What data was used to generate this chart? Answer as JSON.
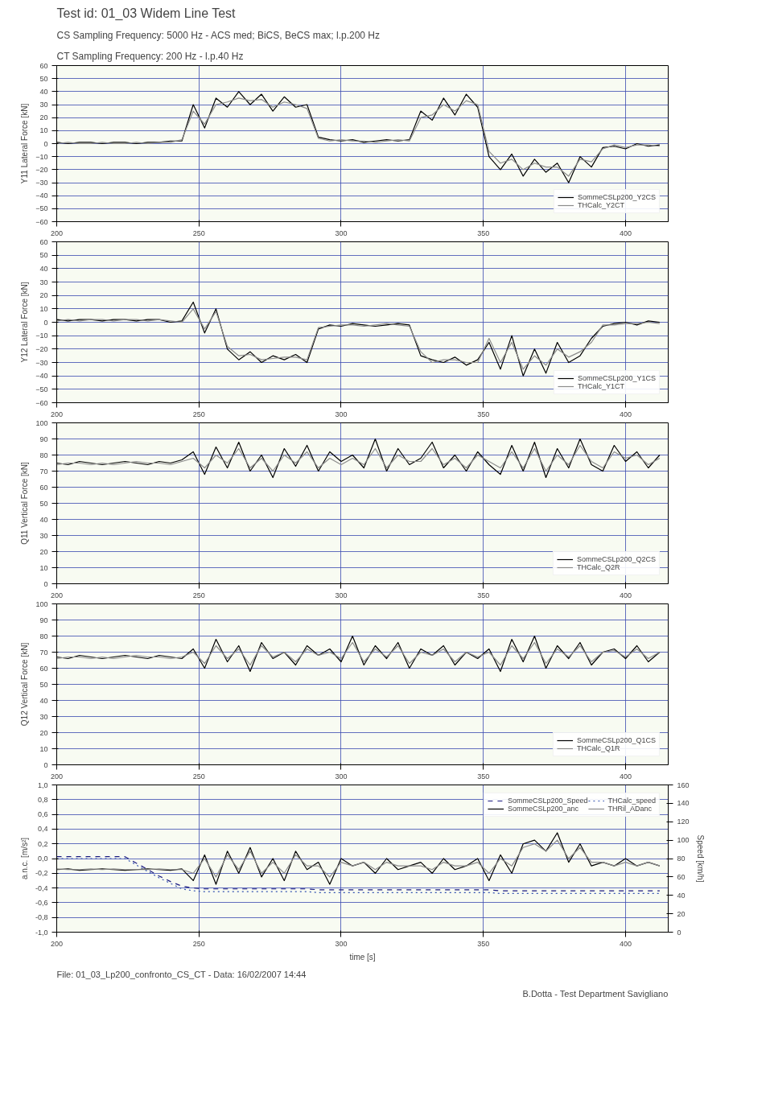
{
  "chart_data": [
    {
      "type": "line",
      "title": "Test id: 01_03 Widem Line Test",
      "subtitle": "CS Sampling Frequency: 5000 Hz - ACS med; BiCS, BeCS max; l.p.200 Hz",
      "annotations": [
        "CT Sampling Frequency: 200 Hz - l.p.40 Hz"
      ],
      "ylabel": "Y11 Lateral Force [kN]",
      "xlim": [
        200,
        415
      ],
      "xticks": [
        200,
        250,
        300,
        350,
        400
      ],
      "ylim": [
        -60,
        60
      ],
      "yticks": [
        -60,
        -50,
        -40,
        -30,
        -20,
        -10,
        0,
        10,
        20,
        30,
        40,
        50,
        60
      ],
      "grid": true,
      "legend": "bottom right",
      "x": [
        200,
        204,
        208,
        212,
        216,
        220,
        224,
        228,
        232,
        236,
        240,
        244,
        248,
        252,
        256,
        260,
        264,
        268,
        272,
        276,
        280,
        284,
        288,
        292,
        296,
        300,
        304,
        308,
        312,
        316,
        320,
        324,
        328,
        332,
        336,
        340,
        344,
        348,
        352,
        356,
        360,
        364,
        368,
        372,
        376,
        380,
        384,
        388,
        392,
        396,
        400,
        404,
        408,
        412
      ],
      "series": [
        {
          "name": "SommeCSLp200_Y2CS",
          "color": "#000000",
          "values": [
            1,
            0,
            1,
            1,
            0,
            1,
            1,
            0,
            1,
            1,
            2,
            2,
            30,
            12,
            35,
            28,
            40,
            30,
            38,
            25,
            36,
            28,
            30,
            5,
            3,
            2,
            3,
            1,
            2,
            3,
            2,
            3,
            25,
            18,
            35,
            22,
            38,
            28,
            -10,
            -20,
            -8,
            -25,
            -12,
            -22,
            -15,
            -30,
            -10,
            -18,
            -3,
            -2,
            -4,
            0,
            -2,
            -1
          ]
        },
        {
          "name": "THCalc_Y2CT",
          "color": "#8c8c8c",
          "values": [
            0,
            1,
            0,
            0,
            1,
            0,
            0,
            1,
            0,
            1,
            1,
            3,
            25,
            15,
            30,
            32,
            35,
            33,
            34,
            28,
            32,
            30,
            27,
            4,
            2,
            3,
            2,
            2,
            1,
            2,
            3,
            2,
            20,
            22,
            30,
            25,
            33,
            30,
            -6,
            -15,
            -12,
            -20,
            -15,
            -18,
            -18,
            -25,
            -12,
            -14,
            -4,
            -1,
            -3,
            -1,
            -1,
            -2
          ]
        }
      ]
    },
    {
      "type": "line",
      "ylabel": "Y12 Lateral Force [kN]",
      "xlim": [
        200,
        415
      ],
      "xticks": [
        200,
        250,
        300,
        350,
        400
      ],
      "ylim": [
        -60,
        60
      ],
      "yticks": [
        -60,
        -50,
        -40,
        -30,
        -20,
        -10,
        0,
        10,
        20,
        30,
        40,
        50,
        60
      ],
      "grid": true,
      "legend": "bottom right",
      "x": [
        200,
        204,
        208,
        212,
        216,
        220,
        224,
        228,
        232,
        236,
        240,
        244,
        248,
        252,
        256,
        260,
        264,
        268,
        272,
        276,
        280,
        284,
        288,
        292,
        296,
        300,
        304,
        308,
        312,
        316,
        320,
        324,
        328,
        332,
        336,
        340,
        344,
        348,
        352,
        356,
        360,
        364,
        368,
        372,
        376,
        380,
        384,
        388,
        392,
        396,
        400,
        404,
        408,
        412
      ],
      "series": [
        {
          "name": "SommeCSLp200_Y1CS",
          "color": "#000000",
          "values": [
            2,
            1,
            2,
            2,
            1,
            2,
            2,
            1,
            2,
            2,
            0,
            1,
            15,
            -8,
            10,
            -20,
            -28,
            -22,
            -30,
            -25,
            -28,
            -24,
            -30,
            -5,
            -2,
            -3,
            -1,
            -2,
            -3,
            -2,
            -1,
            -2,
            -25,
            -28,
            -30,
            -26,
            -32,
            -28,
            -15,
            -35,
            -10,
            -40,
            -20,
            -38,
            -15,
            -30,
            -25,
            -12,
            -3,
            -1,
            0,
            -2,
            1,
            0
          ]
        },
        {
          "name": "THCalc_Y1CT",
          "color": "#8c8c8c",
          "values": [
            1,
            2,
            1,
            2,
            2,
            1,
            2,
            2,
            1,
            2,
            1,
            0,
            10,
            -5,
            8,
            -18,
            -25,
            -24,
            -28,
            -27,
            -26,
            -26,
            -28,
            -4,
            -3,
            -2,
            -2,
            -3,
            -2,
            -1,
            -2,
            -3,
            -22,
            -30,
            -28,
            -28,
            -30,
            -30,
            -12,
            -30,
            -15,
            -35,
            -25,
            -32,
            -20,
            -26,
            -22,
            -15,
            -2,
            -2,
            -1,
            -1,
            0,
            -1
          ]
        }
      ]
    },
    {
      "type": "line",
      "ylabel": "Q11 Vertical Force [kN]",
      "xlim": [
        200,
        415
      ],
      "xticks": [
        200,
        250,
        300,
        350,
        400
      ],
      "ylim": [
        0,
        100
      ],
      "yticks": [
        0,
        10,
        20,
        30,
        40,
        50,
        60,
        70,
        80,
        90,
        100
      ],
      "grid": true,
      "legend": "bottom right",
      "x": [
        200,
        204,
        208,
        212,
        216,
        220,
        224,
        228,
        232,
        236,
        240,
        244,
        248,
        252,
        256,
        260,
        264,
        268,
        272,
        276,
        280,
        284,
        288,
        292,
        296,
        300,
        304,
        308,
        312,
        316,
        320,
        324,
        328,
        332,
        336,
        340,
        344,
        348,
        352,
        356,
        360,
        364,
        368,
        372,
        376,
        380,
        384,
        388,
        392,
        396,
        400,
        404,
        408,
        412
      ],
      "series": [
        {
          "name": "SommeCSLp200_Q2CS",
          "color": "#000000",
          "values": [
            75,
            74,
            76,
            75,
            74,
            75,
            76,
            75,
            74,
            76,
            75,
            77,
            82,
            68,
            85,
            72,
            88,
            70,
            80,
            66,
            84,
            73,
            86,
            70,
            82,
            76,
            80,
            72,
            90,
            70,
            84,
            74,
            78,
            88,
            72,
            80,
            70,
            82,
            74,
            68,
            86,
            70,
            88,
            66,
            84,
            72,
            90,
            74,
            70,
            86,
            76,
            82,
            72,
            80
          ]
        },
        {
          "name": "THCalc_Q2R",
          "color": "#8c8c8c",
          "values": [
            74,
            75,
            75,
            74,
            75,
            74,
            75,
            76,
            75,
            75,
            74,
            76,
            78,
            72,
            80,
            75,
            84,
            72,
            78,
            70,
            80,
            75,
            82,
            72,
            78,
            74,
            78,
            74,
            84,
            72,
            80,
            76,
            76,
            84,
            74,
            78,
            72,
            80,
            76,
            72,
            82,
            72,
            84,
            70,
            80,
            74,
            86,
            76,
            72,
            82,
            78,
            80,
            74,
            78
          ]
        }
      ]
    },
    {
      "type": "line",
      "ylabel": "Q12 Vertical Force [kN]",
      "xlim": [
        200,
        415
      ],
      "xticks": [
        200,
        250,
        300,
        350,
        400
      ],
      "ylim": [
        0,
        100
      ],
      "yticks": [
        0,
        10,
        20,
        30,
        40,
        50,
        60,
        70,
        80,
        90,
        100
      ],
      "grid": true,
      "legend": "bottom right",
      "x": [
        200,
        204,
        208,
        212,
        216,
        220,
        224,
        228,
        232,
        236,
        240,
        244,
        248,
        252,
        256,
        260,
        264,
        268,
        272,
        276,
        280,
        284,
        288,
        292,
        296,
        300,
        304,
        308,
        312,
        316,
        320,
        324,
        328,
        332,
        336,
        340,
        344,
        348,
        352,
        356,
        360,
        364,
        368,
        372,
        376,
        380,
        384,
        388,
        392,
        396,
        400,
        404,
        408,
        412
      ],
      "series": [
        {
          "name": "SommeCSLp200_Q1CS",
          "color": "#000000",
          "values": [
            67,
            66,
            68,
            67,
            66,
            67,
            68,
            67,
            66,
            68,
            67,
            66,
            72,
            60,
            78,
            64,
            74,
            58,
            76,
            66,
            70,
            62,
            74,
            68,
            72,
            64,
            80,
            62,
            74,
            66,
            76,
            60,
            72,
            68,
            74,
            62,
            70,
            66,
            72,
            58,
            78,
            64,
            80,
            60,
            74,
            66,
            76,
            62,
            70,
            72,
            66,
            74,
            64,
            70
          ]
        },
        {
          "name": "THCalc_Q1R",
          "color": "#8c8c8c",
          "values": [
            66,
            67,
            67,
            66,
            67,
            66,
            67,
            68,
            67,
            67,
            66,
            67,
            70,
            63,
            74,
            66,
            72,
            62,
            74,
            67,
            70,
            64,
            72,
            68,
            70,
            66,
            76,
            64,
            72,
            67,
            74,
            63,
            70,
            68,
            72,
            64,
            70,
            67,
            70,
            62,
            74,
            66,
            76,
            63,
            72,
            67,
            74,
            64,
            70,
            71,
            67,
            72,
            66,
            70
          ]
        }
      ]
    },
    {
      "type": "line",
      "xlabel": "time [s]",
      "ylabel": "a.n.c. [m/s²]",
      "y2label": "Speed [km/h]",
      "xlim": [
        200,
        415
      ],
      "xticks": [
        200,
        250,
        300,
        350,
        400
      ],
      "ylim": [
        -1,
        1
      ],
      "yticks": [
        {
          "value": -1,
          "label": "-1,0"
        },
        {
          "value": -0.8,
          "label": "-0,8"
        },
        {
          "value": -0.6,
          "label": "-0,6"
        },
        {
          "value": -0.4,
          "label": "-0,4"
        },
        {
          "value": -0.2,
          "label": "-0,2"
        },
        {
          "value": 0,
          "label": "0,0"
        },
        {
          "value": 0.2,
          "label": "0,2"
        },
        {
          "value": 0.4,
          "label": "0,4"
        },
        {
          "value": 0.6,
          "label": "0,6"
        },
        {
          "value": 0.8,
          "label": "0,8"
        },
        {
          "value": 1,
          "label": "1,0"
        }
      ],
      "y2lim": [
        0,
        160
      ],
      "y2ticks": [
        0,
        20,
        40,
        60,
        80,
        100,
        120,
        140,
        160
      ],
      "grid": true,
      "legend": "top right",
      "annotations": [
        "File: 01_03_Lp200_confronto_CS_CT - Data: 16/02/2007 14:44",
        "B.Dotta - Test Department Savigliano"
      ],
      "x": [
        200,
        204,
        208,
        212,
        216,
        220,
        224,
        228,
        232,
        236,
        240,
        244,
        248,
        252,
        256,
        260,
        264,
        268,
        272,
        276,
        280,
        284,
        288,
        292,
        296,
        300,
        304,
        308,
        312,
        316,
        320,
        324,
        328,
        332,
        336,
        340,
        344,
        348,
        352,
        356,
        360,
        364,
        368,
        372,
        376,
        380,
        384,
        388,
        392,
        396,
        400,
        404,
        408,
        412
      ],
      "series": [
        {
          "name": "SommeCSLp200_Speed",
          "color": "#1a1a80",
          "axis": "y2",
          "line_style": "dashed",
          "values": [
            82,
            82,
            82,
            82,
            82,
            82,
            82,
            75,
            68,
            61,
            55,
            50,
            48,
            47,
            47,
            47,
            47,
            47,
            47,
            47,
            47,
            47,
            47,
            46,
            46,
            46,
            46,
            46,
            46,
            46,
            46,
            46,
            46,
            46,
            46,
            46,
            46,
            46,
            46,
            45,
            45,
            45,
            45,
            45,
            45,
            45,
            45,
            45,
            45,
            45,
            45,
            45,
            45,
            45
          ]
        },
        {
          "name": "THCalc_speed",
          "color": "#3050b0",
          "axis": "y2",
          "line_style": "dotted",
          "values": [
            80,
            80,
            80,
            80,
            80,
            80,
            80,
            73,
            66,
            59,
            53,
            47,
            45,
            44,
            44,
            44,
            44,
            44,
            44,
            44,
            44,
            44,
            44,
            43,
            43,
            43,
            43,
            43,
            43,
            43,
            43,
            43,
            43,
            43,
            43,
            43,
            43,
            43,
            43,
            42,
            42,
            42,
            42,
            42,
            42,
            42,
            42,
            42,
            42,
            42,
            42,
            42,
            42,
            42
          ]
        },
        {
          "name": "SommeCSLp200_anc",
          "color": "#000000",
          "values": [
            -0.15,
            -0.14,
            -0.16,
            -0.15,
            -0.14,
            -0.15,
            -0.16,
            -0.15,
            -0.14,
            -0.15,
            -0.16,
            -0.14,
            -0.3,
            0.05,
            -0.35,
            0.1,
            -0.2,
            0.15,
            -0.25,
            0.0,
            -0.3,
            0.1,
            -0.15,
            -0.05,
            -0.35,
            0.0,
            -0.1,
            -0.05,
            -0.2,
            0.0,
            -0.15,
            -0.1,
            -0.05,
            -0.2,
            0.0,
            -0.15,
            -0.1,
            0.0,
            -0.3,
            0.05,
            -0.2,
            0.2,
            0.25,
            0.1,
            0.35,
            -0.05,
            0.2,
            -0.1,
            -0.05,
            -0.1,
            0.0,
            -0.1,
            -0.05,
            -0.1
          ]
        },
        {
          "name": "THRil_ADanc",
          "color": "#8c8c8c",
          "values": [
            -0.14,
            -0.15,
            -0.15,
            -0.14,
            -0.15,
            -0.14,
            -0.15,
            -0.15,
            -0.15,
            -0.14,
            -0.15,
            -0.15,
            -0.2,
            0.0,
            -0.25,
            0.05,
            -0.15,
            0.1,
            -0.2,
            -0.05,
            -0.2,
            0.05,
            -0.1,
            -0.1,
            -0.25,
            -0.05,
            -0.1,
            -0.05,
            -0.15,
            -0.05,
            -0.1,
            -0.1,
            -0.1,
            -0.15,
            -0.05,
            -0.1,
            -0.1,
            -0.05,
            -0.2,
            0.0,
            -0.1,
            0.15,
            0.2,
            0.1,
            0.25,
            0.0,
            0.15,
            -0.05,
            -0.05,
            -0.1,
            -0.05,
            -0.1,
            -0.05,
            -0.1
          ]
        }
      ]
    }
  ]
}
